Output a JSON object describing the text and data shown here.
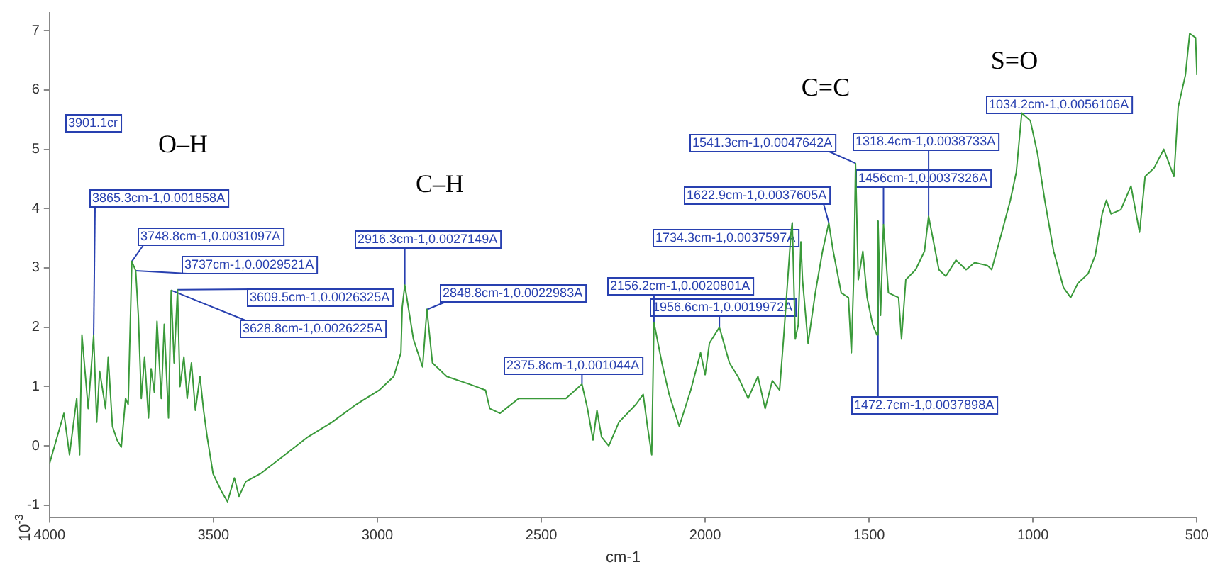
{
  "chart_data": {
    "type": "line",
    "xlabel": "cm-1",
    "ylabel": "10$^{-3}$",
    "xlim": [
      4000,
      500
    ],
    "xticks": [
      4000,
      3500,
      3000,
      2500,
      2000,
      1500,
      1000,
      500
    ],
    "ylim": [
      -1.2,
      7.3
    ],
    "yticks": [
      -1,
      0,
      1,
      2,
      3,
      4,
      5,
      6,
      7
    ],
    "grid": false,
    "legend": false,
    "marker": "none",
    "line_style": "solid",
    "x": [
      4000,
      3956,
      3939,
      3917,
      3908,
      3901.1,
      3882,
      3865.3,
      3856,
      3847,
      3829,
      3821,
      3808,
      3794,
      3781,
      3768,
      3760,
      3748.8,
      3737,
      3729,
      3720,
      3710,
      3698,
      3690,
      3680,
      3672,
      3659,
      3650,
      3637,
      3628.8,
      3620,
      3609.5,
      3602,
      3590,
      3580,
      3567,
      3555,
      3541,
      3530,
      3519,
      3501,
      3475,
      3457,
      3436,
      3422,
      3401,
      3357,
      3282,
      3212,
      3138,
      3064,
      2994,
      2950,
      2928,
      2924,
      2916.3,
      2890,
      2862,
      2848.8,
      2832,
      2788,
      2714,
      2670,
      2657,
      2626,
      2569,
      2495,
      2425,
      2375.8,
      2359,
      2342,
      2330,
      2316,
      2294,
      2263,
      2211,
      2189,
      2176,
      2163,
      2156.2,
      2132,
      2110,
      2079,
      2044,
      2014,
      2000,
      1987,
      1956.6,
      1926,
      1900,
      1869,
      1839,
      1817,
      1795,
      1773,
      1760,
      1751,
      1738,
      1734.3,
      1725,
      1716,
      1708,
      1703,
      1686,
      1664,
      1642,
      1622.9,
      1610,
      1585,
      1563,
      1554,
      1546,
      1541.3,
      1533,
      1519,
      1506,
      1489,
      1476,
      1472.7,
      1465,
      1456,
      1441,
      1410,
      1401,
      1388,
      1358,
      1331,
      1318.4,
      1287,
      1266,
      1235,
      1204,
      1178,
      1139,
      1126,
      1095,
      1069,
      1051,
      1034.2,
      1008,
      986,
      964,
      937,
      907,
      885,
      863,
      832,
      810,
      789,
      776,
      762,
      732,
      701,
      675,
      658,
      631,
      601,
      570,
      557,
      535,
      522,
      504,
      500
    ],
    "series": [
      {
        "color": "#3a9a3a",
        "values": [
          -0.3,
          0.55,
          -0.15,
          0.8,
          -0.15,
          1.87,
          0.63,
          1.86,
          0.4,
          1.26,
          0.63,
          1.5,
          0.33,
          0.1,
          -0.02,
          0.8,
          0.7,
          3.11,
          2.95,
          2.2,
          0.8,
          1.5,
          0.47,
          1.3,
          0.9,
          2.1,
          0.8,
          2.05,
          0.47,
          2.62,
          1.4,
          2.63,
          1.0,
          1.5,
          0.8,
          1.4,
          0.6,
          1.17,
          0.6,
          0.15,
          -0.47,
          -0.77,
          -0.94,
          -0.54,
          -0.85,
          -0.6,
          -0.47,
          -0.15,
          0.15,
          0.4,
          0.7,
          0.94,
          1.17,
          1.57,
          2.34,
          2.71,
          1.8,
          1.33,
          2.3,
          1.4,
          1.17,
          1.03,
          0.94,
          0.63,
          0.55,
          0.8,
          0.8,
          0.8,
          1.04,
          0.63,
          0.1,
          0.6,
          0.15,
          0,
          0.4,
          0.7,
          0.87,
          0.33,
          -0.15,
          2.08,
          1.4,
          0.87,
          0.33,
          0.94,
          1.57,
          1.2,
          1.73,
          2.0,
          1.4,
          1.17,
          0.8,
          1.17,
          0.63,
          1.1,
          0.94,
          1.87,
          2.58,
          3.6,
          3.76,
          1.8,
          2.04,
          3.44,
          2.8,
          1.73,
          2.58,
          3.28,
          3.76,
          3.3,
          2.58,
          2.5,
          1.57,
          3.0,
          4.76,
          2.8,
          3.28,
          2.5,
          2.04,
          1.87,
          3.79,
          2.2,
          3.73,
          2.58,
          2.5,
          1.8,
          2.8,
          2.97,
          3.28,
          3.87,
          2.97,
          2.86,
          3.13,
          2.97,
          3.09,
          3.04,
          2.97,
          3.6,
          4.14,
          4.61,
          5.61,
          5.48,
          4.92,
          4.14,
          3.28,
          2.67,
          2.5,
          2.74,
          2.9,
          3.21,
          3.91,
          4.14,
          3.91,
          3.98,
          4.38,
          3.6,
          4.54,
          4.68,
          5.0,
          4.54,
          5.71,
          6.25,
          6.95,
          6.88,
          6.25
        ]
      }
    ],
    "annotations": [
      "O–H",
      "C–H",
      "C=C",
      "S=O",
      "3901.1cr",
      {
        "text": "3865.3cm-1,0.001858A",
        "x": 3865.3,
        "y": 1.858
      },
      {
        "text": "3748.8cm-1,0.0031097A",
        "x": 3748.8,
        "y": 3.1097
      },
      {
        "text": "3737cm-1,0.0029521A",
        "x": 3737,
        "y": 2.9521
      },
      {
        "text": "3609.5cm-1,0.0026325A",
        "x": 3609.5,
        "y": 2.6325
      },
      {
        "text": "3628.8cm-1,0.0026225A",
        "x": 3628.8,
        "y": 2.6225
      },
      {
        "text": "2916.3cm-1,0.0027149A",
        "x": 2916.3,
        "y": 2.7149
      },
      {
        "text": "2848.8cm-1,0.0022983A",
        "x": 2848.8,
        "y": 2.2983
      },
      {
        "text": "2375.8cm-1,0.001044A",
        "x": 2375.8,
        "y": 1.044
      },
      {
        "text": "2156.2cm-1,0.0020801A",
        "x": 2156.2,
        "y": 2.0801
      },
      {
        "text": "1956.6cm-1,0.0019972A",
        "x": 1956.6,
        "y": 1.9972
      },
      {
        "text": "1734.3cm-1,0.0037597A",
        "x": 1734.3,
        "y": 3.7597
      },
      {
        "text": "1622.9cm-1,0.0037605A",
        "x": 1622.9,
        "y": 3.7605
      },
      {
        "text": "1541.3cm-1,0.0047642A",
        "x": 1541.3,
        "y": 4.7642
      },
      {
        "text": "1318.4cm-1,0.0038733A",
        "x": 1318.4,
        "y": 3.8733
      },
      {
        "text": "1456cm-1,0.0037326A",
        "x": 1456,
        "y": 3.7326
      },
      {
        "text": "1472.7cm-1,0.0037898A",
        "x": 1472.7,
        "y": 3.7898
      },
      {
        "text": "1034.2cm-1,0.0056106A",
        "x": 1034.2,
        "y": 5.6106
      }
    ]
  }
}
